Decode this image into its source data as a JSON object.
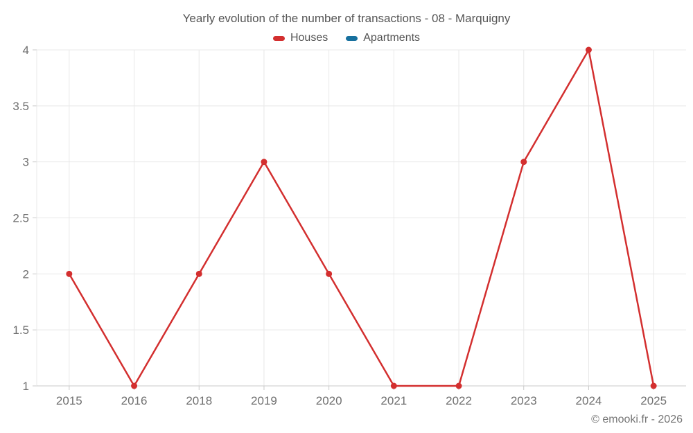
{
  "chart_data": {
    "type": "line",
    "title": "Yearly evolution of the number of transactions - 08 - Marquigny",
    "categories": [
      "2015",
      "2016",
      "2018",
      "2019",
      "2020",
      "2021",
      "2022",
      "2023",
      "2024",
      "2025"
    ],
    "series": [
      {
        "name": "Houses",
        "color": "#d32f2f",
        "values": [
          2,
          1,
          2,
          3,
          2,
          1,
          1,
          3,
          4,
          1
        ]
      },
      {
        "name": "Apartments",
        "color": "#17709e",
        "values": []
      }
    ],
    "xlabel": "",
    "ylabel": "",
    "ylim": [
      1,
      4
    ],
    "yticks": [
      1,
      1.5,
      2,
      2.5,
      3,
      3.5,
      4
    ],
    "ytick_labels": [
      "1",
      "1.5",
      "2",
      "2.5",
      "3",
      "3.5",
      "4"
    ],
    "grid": true,
    "legend_position": "top"
  },
  "colors": {
    "grid_line": "#e8e8e8",
    "axis_line": "#c9c9c9",
    "tick_label": "#707070"
  },
  "footer": {
    "text": "© emooki.fr - 2026"
  }
}
